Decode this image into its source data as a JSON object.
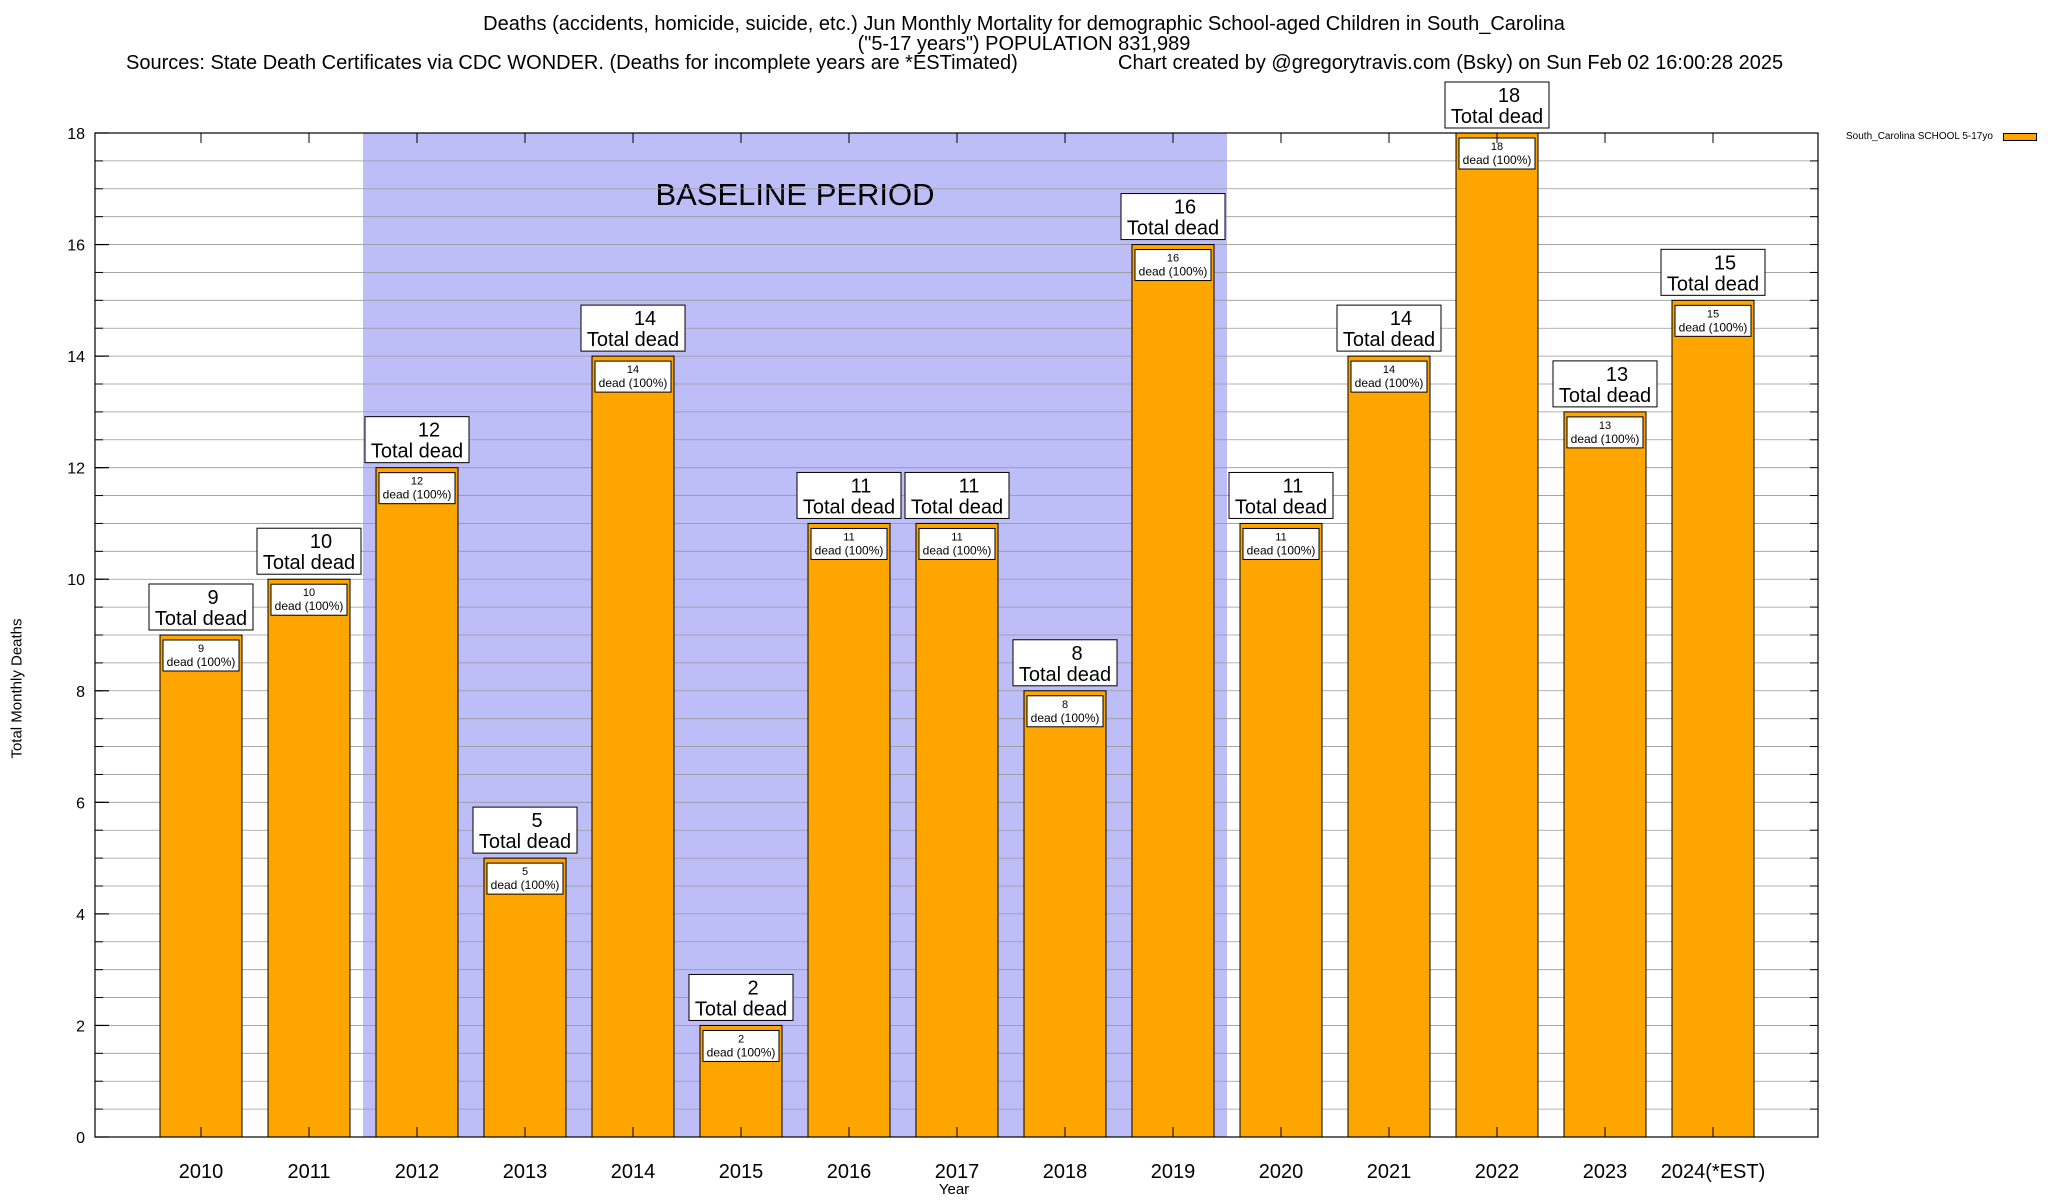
{
  "header": {
    "title_line1": "Deaths (accidents, homicide, suicide, etc.) Jun Monthly Mortality for demographic School-aged Children in South_Carolina",
    "title_line2": "(\"5-17 years\") POPULATION 831,989",
    "sources": "Sources: State Death Certificates via CDC WONDER. (Deaths for incomplete years are *ESTimated)",
    "credit": "Chart created by @gregorytravis.com (Bsky) on Sun Feb 02 16:00:28 2025"
  },
  "legend": {
    "label": "South_Carolina SCHOOL 5-17yo"
  },
  "chart_data": {
    "type": "bar",
    "title": "Deaths (accidents, homicide, suicide, etc.) Jun Monthly Mortality for demographic School-aged Children in South_Carolina",
    "xlabel": "Year",
    "ylabel": "Total Monthly Deaths",
    "ylim": [
      0,
      18
    ],
    "yticks": [
      0,
      2,
      4,
      6,
      8,
      10,
      12,
      14,
      16,
      18
    ],
    "grid": true,
    "legend_position": "top-right, outside plot",
    "categories": [
      "2010",
      "2011",
      "2012",
      "2013",
      "2014",
      "2015",
      "2016",
      "2017",
      "2018",
      "2019",
      "2020",
      "2021",
      "2022",
      "2023",
      "2024(*EST)"
    ],
    "series": [
      {
        "name": "South_Carolina SCHOOL 5-17yo",
        "values": [
          9,
          10,
          12,
          5,
          14,
          2,
          11,
          11,
          8,
          16,
          11,
          14,
          18,
          13,
          15
        ]
      }
    ],
    "total_label_suffix": "Total dead",
    "inner_label_suffix": "dead (100%)",
    "baseline_band": {
      "label": "BASELINE PERIOD",
      "from": "2012",
      "to": "2019",
      "color": "#BDBDF7"
    },
    "bar_color": "#FFA500"
  }
}
